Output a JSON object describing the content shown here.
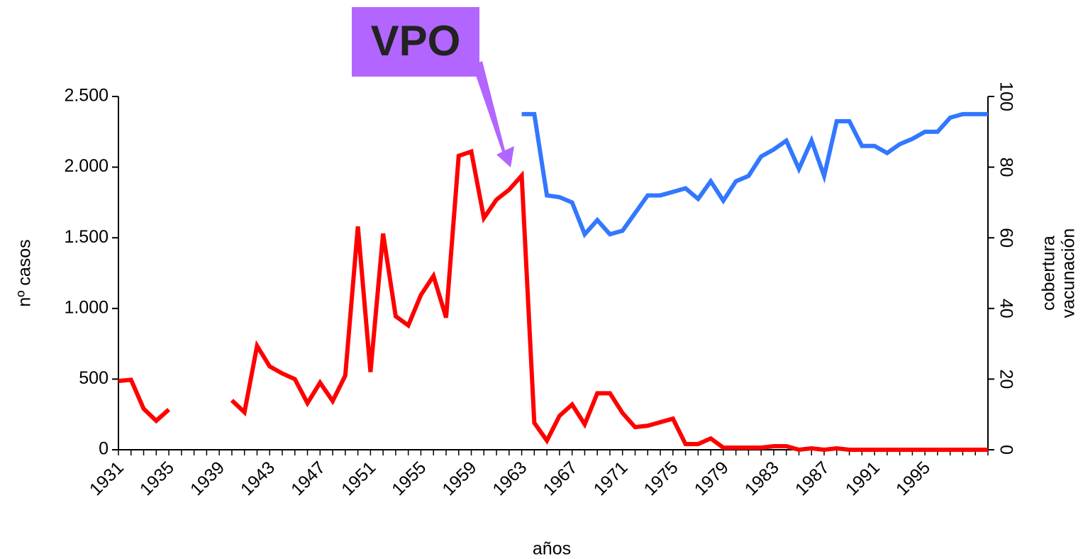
{
  "chart_data": {
    "type": "line",
    "annotation": "VPO",
    "xlabel": "años",
    "ylabel": "nº casos",
    "y2label": [
      "cobertura",
      "vacunación"
    ],
    "categories": [
      "1931",
      null,
      null,
      null,
      "1935",
      null,
      null,
      null,
      "1939",
      null,
      null,
      null,
      "1943",
      null,
      null,
      null,
      "1947",
      null,
      null,
      null,
      "1951",
      null,
      null,
      null,
      "1955",
      null,
      null,
      null,
      "1959",
      null,
      null,
      null,
      "1963",
      null,
      null,
      null,
      "1967",
      null,
      null,
      null,
      "1971",
      null,
      null,
      null,
      "1975",
      null,
      null,
      null,
      "1979",
      null,
      null,
      null,
      "1983",
      null,
      null,
      null,
      "1987",
      null,
      null,
      null,
      "1991",
      null,
      null,
      null,
      "1995",
      null,
      null,
      null,
      null,
      null
    ],
    "series": [
      {
        "name": "nº casos",
        "color": "#ff0000",
        "axis": "y",
        "values": [
          487,
          495,
          290,
          205,
          285,
          null,
          null,
          null,
          null,
          350,
          265,
          735,
          590,
          540,
          500,
          330,
          475,
          345,
          525,
          1580,
          550,
          1530,
          945,
          880,
          1095,
          1230,
          935,
          2080,
          2110,
          1640,
          1770,
          1840,
          1940,
          190,
          65,
          240,
          320,
          180,
          400,
          400,
          260,
          160,
          170,
          195,
          220,
          40,
          40,
          80,
          15,
          15,
          15,
          15,
          25,
          25,
          0,
          10,
          0,
          10,
          0,
          0,
          0,
          0,
          0,
          0,
          0,
          0,
          0,
          0,
          0,
          0
        ]
      },
      {
        "name": "cobertura vacunación",
        "color": "#3377ff",
        "axis": "y2",
        "values": [
          null,
          null,
          null,
          null,
          null,
          null,
          null,
          null,
          null,
          null,
          null,
          null,
          null,
          null,
          null,
          null,
          null,
          null,
          null,
          null,
          null,
          null,
          null,
          null,
          null,
          null,
          null,
          null,
          null,
          null,
          null,
          null,
          95,
          95,
          72,
          71.5,
          70,
          61,
          65,
          61,
          62,
          67,
          72,
          72,
          73,
          74,
          71,
          76,
          70.5,
          76,
          77.5,
          83,
          85,
          87.5,
          79.5,
          87.5,
          77.5,
          93,
          93,
          86,
          86,
          84,
          86.5,
          88,
          90,
          90,
          94,
          95,
          95,
          95
        ]
      }
    ],
    "ylim": [
      0,
      2500
    ],
    "yticks": [
      0,
      500,
      {
        "value": 1000,
        "label": "1.000"
      },
      {
        "value": 1500,
        "label": "1.500"
      },
      {
        "value": 2000,
        "label": "2.000"
      },
      {
        "value": 2500,
        "label": "2.500"
      }
    ],
    "y2lim": [
      0,
      100
    ],
    "y2ticks": [
      0,
      20,
      40,
      60,
      80,
      100
    ],
    "grid": false
  }
}
